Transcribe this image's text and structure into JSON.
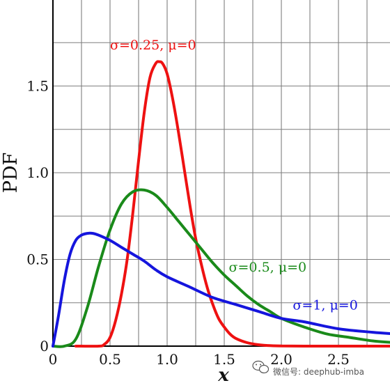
{
  "chart_data": {
    "type": "line",
    "xlabel": "x",
    "ylabel": "PDF",
    "xlim": [
      0,
      3.0
    ],
    "ylim": [
      0,
      2.0
    ],
    "grid": true,
    "x_ticks": [
      "0",
      "0.5",
      "1.0",
      "1.5",
      "2.0",
      "2.5"
    ],
    "y_ticks": [
      "0",
      "0.5",
      "1.0",
      "1.5"
    ],
    "series": [
      {
        "name": "σ=0.25, μ=0",
        "color": "#ee1111",
        "x": [
          0.2,
          0.4,
          0.45,
          0.5,
          0.55,
          0.6,
          0.65,
          0.7,
          0.75,
          0.8,
          0.85,
          0.9,
          0.93,
          0.96,
          1.0,
          1.05,
          1.1,
          1.15,
          1.2,
          1.25,
          1.3,
          1.35,
          1.4,
          1.45,
          1.5,
          1.55,
          1.6,
          1.7,
          1.8,
          1.9,
          2.0,
          2.2,
          2.5,
          3.0
        ],
        "y": [
          0.0,
          0.0,
          0.01,
          0.05,
          0.15,
          0.3,
          0.5,
          0.77,
          1.07,
          1.35,
          1.55,
          1.63,
          1.64,
          1.63,
          1.57,
          1.42,
          1.23,
          1.02,
          0.81,
          0.62,
          0.47,
          0.34,
          0.24,
          0.16,
          0.11,
          0.07,
          0.045,
          0.02,
          0.008,
          0.003,
          0.001,
          0.0,
          0.0,
          0.0
        ]
      },
      {
        "name": "σ=0.5, μ=0",
        "color": "#1a8a1a",
        "x": [
          0.0,
          0.1,
          0.2,
          0.3,
          0.4,
          0.5,
          0.6,
          0.7,
          0.8,
          0.9,
          1.0,
          1.1,
          1.2,
          1.3,
          1.4,
          1.5,
          1.6,
          1.7,
          1.8,
          1.9,
          2.0,
          2.2,
          2.4,
          2.6,
          2.8,
          3.0
        ],
        "y": [
          0.0,
          0.0,
          0.04,
          0.22,
          0.46,
          0.67,
          0.82,
          0.89,
          0.9,
          0.87,
          0.8,
          0.72,
          0.64,
          0.56,
          0.48,
          0.41,
          0.35,
          0.29,
          0.24,
          0.2,
          0.16,
          0.11,
          0.07,
          0.05,
          0.03,
          0.02
        ]
      },
      {
        "name": "σ=1, μ=0",
        "color": "#1515dd",
        "x": [
          0.0,
          0.05,
          0.1,
          0.15,
          0.2,
          0.25,
          0.3,
          0.35,
          0.4,
          0.5,
          0.6,
          0.7,
          0.8,
          0.9,
          1.0,
          1.2,
          1.4,
          1.6,
          1.8,
          2.0,
          2.2,
          2.5,
          2.8,
          3.0
        ],
        "y": [
          0.0,
          0.18,
          0.38,
          0.53,
          0.61,
          0.64,
          0.65,
          0.65,
          0.64,
          0.61,
          0.57,
          0.53,
          0.49,
          0.44,
          0.4,
          0.34,
          0.28,
          0.24,
          0.2,
          0.16,
          0.14,
          0.1,
          0.08,
          0.07
        ]
      }
    ],
    "annotations": [
      {
        "text": "σ=0.25, μ=0",
        "color": "#ee1111",
        "x": 0.5,
        "y": 1.71
      },
      {
        "text": "σ=0.5, μ=0",
        "color": "#1a8a1a",
        "x": 1.54,
        "y": 0.43
      },
      {
        "text": "σ=1, μ=0",
        "color": "#1515dd",
        "x": 2.1,
        "y": 0.21
      }
    ]
  },
  "watermark": "微信号: deephub-imba"
}
